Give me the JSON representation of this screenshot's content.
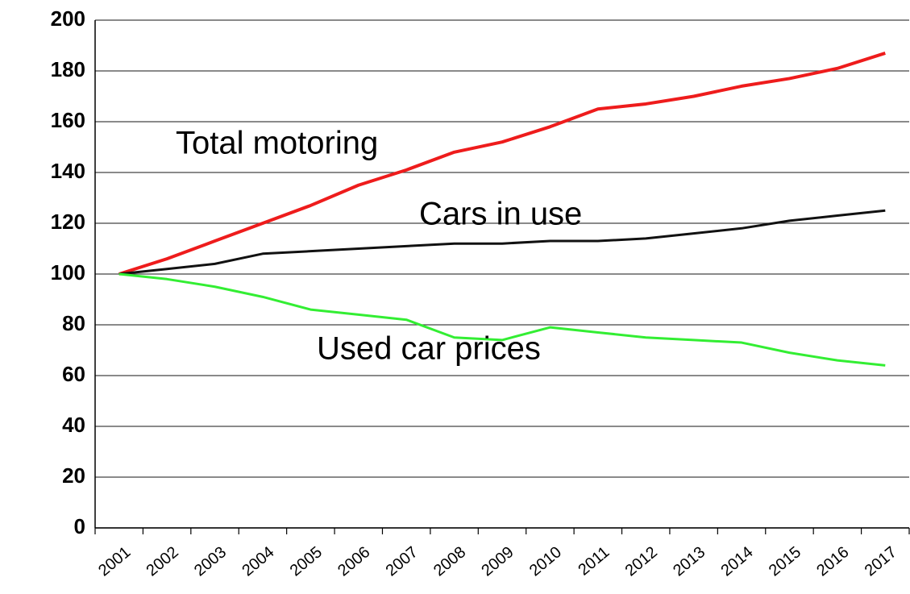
{
  "chart_data": {
    "type": "line",
    "categories": [
      "2001",
      "2002",
      "2003",
      "2004",
      "2005",
      "2006",
      "2007",
      "2008",
      "2009",
      "2010",
      "2011",
      "2012",
      "2013",
      "2014",
      "2015",
      "2016",
      "2017"
    ],
    "series": [
      {
        "name": "Total motoring",
        "color": "#ee1c1c",
        "values": [
          100,
          106,
          113,
          120,
          127,
          135,
          141,
          148,
          152,
          158,
          165,
          167,
          170,
          174,
          177,
          181,
          187
        ]
      },
      {
        "name": "Cars in use",
        "color": "#111111",
        "values": [
          100,
          102,
          104,
          108,
          109,
          110,
          111,
          112,
          112,
          113,
          113,
          114,
          116,
          118,
          121,
          123,
          125
        ]
      },
      {
        "name": "Used car prices",
        "color": "#33ee33",
        "values": [
          100,
          98,
          95,
          91,
          86,
          84,
          82,
          75,
          74,
          79,
          77,
          75,
          74,
          73,
          69,
          66,
          64
        ]
      }
    ],
    "ylim": [
      0,
      200
    ],
    "yticks": [
      0,
      20,
      40,
      60,
      80,
      100,
      120,
      140,
      160,
      180,
      200
    ],
    "grid": true
  }
}
